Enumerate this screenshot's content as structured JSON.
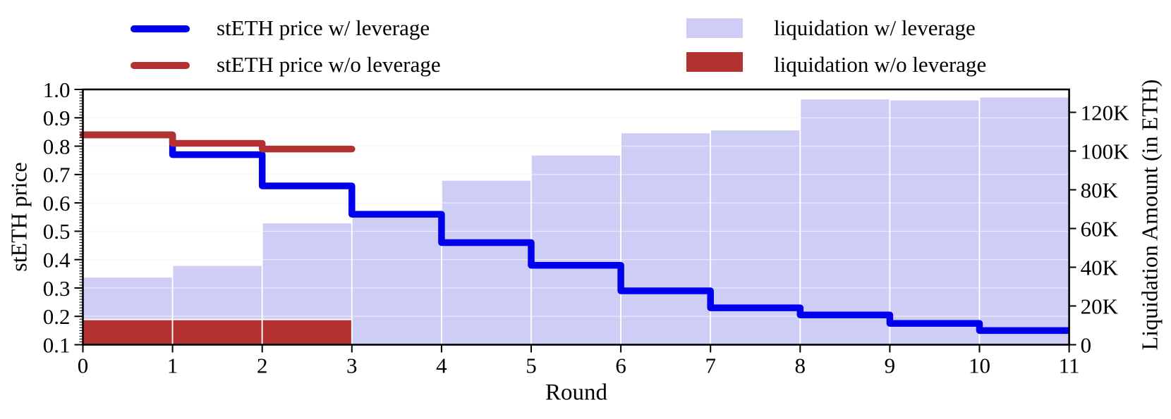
{
  "figure_colors": {
    "blue_line": "#0000ee",
    "red": "#b23232",
    "lavender": "#cdcdf6",
    "grid": "#efefef",
    "axis": "#000000"
  },
  "legend": {
    "left": [
      {
        "label": "stETH price w/ leverage",
        "type": "line",
        "color": "#0000ee"
      },
      {
        "label": "stETH price w/o leverage",
        "type": "line",
        "color": "#b23232"
      }
    ],
    "right": [
      {
        "label": "liquidation w/ leverage",
        "type": "patch",
        "color": "#cdcdf6"
      },
      {
        "label": "liquidation w/o leverage",
        "type": "patch",
        "color": "#b23232"
      }
    ]
  },
  "axes": {
    "x": {
      "label": "Round",
      "tick_labels": [
        "0",
        "1",
        "2",
        "3",
        "4",
        "5",
        "6",
        "7",
        "8",
        "9",
        "10",
        "11"
      ],
      "tick_values": [
        0,
        1,
        2,
        3,
        4,
        5,
        6,
        7,
        8,
        9,
        10,
        11
      ],
      "range": [
        0,
        11
      ]
    },
    "y_left": {
      "label": "stETH price",
      "tick_labels": [
        "0.1",
        "0.2",
        "0.3",
        "0.4",
        "0.5",
        "0.6",
        "0.7",
        "0.8",
        "0.9",
        "1.0"
      ],
      "tick_values": [
        0.1,
        0.2,
        0.3,
        0.4,
        0.5,
        0.6,
        0.7,
        0.8,
        0.9,
        1.0
      ],
      "range": [
        0.1,
        1.0
      ],
      "minor_tick_step": 0.01
    },
    "y_right": {
      "label": "Liquidation Amount (in ETH)",
      "tick_labels": [
        "0",
        "20K",
        "40K",
        "60K",
        "80K",
        "100K",
        "120K"
      ],
      "tick_values": [
        0,
        20000,
        40000,
        60000,
        80000,
        100000,
        120000
      ],
      "range": [
        0,
        131818
      ]
    }
  },
  "chart_data": {
    "type": "combo-step-line-and-step-bar",
    "title": "",
    "xlabel": "Round",
    "ylabel_left": "stETH price",
    "ylabel_right": "Liquidation Amount (in ETH)",
    "grid": "horizontal-major",
    "legend_position": "top-outside",
    "x_round_edges": [
      0,
      1,
      2,
      3,
      4,
      5,
      6,
      7,
      8,
      9,
      10,
      11
    ],
    "series": [
      {
        "name": "stETH price w/ leverage",
        "type": "step-line",
        "axis": "left",
        "color": "#0000ee",
        "segment_start_x": [
          0,
          1,
          2,
          3,
          4,
          5,
          6,
          7,
          8,
          9,
          10
        ],
        "values": [
          0.84,
          0.77,
          0.66,
          0.56,
          0.46,
          0.38,
          0.29,
          0.23,
          0.205,
          0.175,
          0.15
        ]
      },
      {
        "name": "stETH price w/o leverage",
        "type": "step-line",
        "axis": "left",
        "color": "#b23232",
        "segment_start_x": [
          0,
          1,
          2
        ],
        "values": [
          0.84,
          0.81,
          0.79
        ]
      },
      {
        "name": "liquidation w/ leverage",
        "type": "step-bar",
        "axis": "right",
        "color": "#cdcdf6",
        "segment_start_x": [
          0,
          1,
          2,
          3,
          4,
          5,
          6,
          7,
          8,
          9,
          10
        ],
        "values": [
          35000,
          41000,
          63000,
          66500,
          85000,
          98000,
          109500,
          111000,
          127000,
          126500,
          128000
        ]
      },
      {
        "name": "liquidation w/o leverage",
        "type": "step-bar",
        "axis": "right",
        "color": "#b23232",
        "segment_start_x": [
          0,
          1,
          2
        ],
        "values": [
          13000,
          13000,
          13000
        ]
      }
    ]
  }
}
